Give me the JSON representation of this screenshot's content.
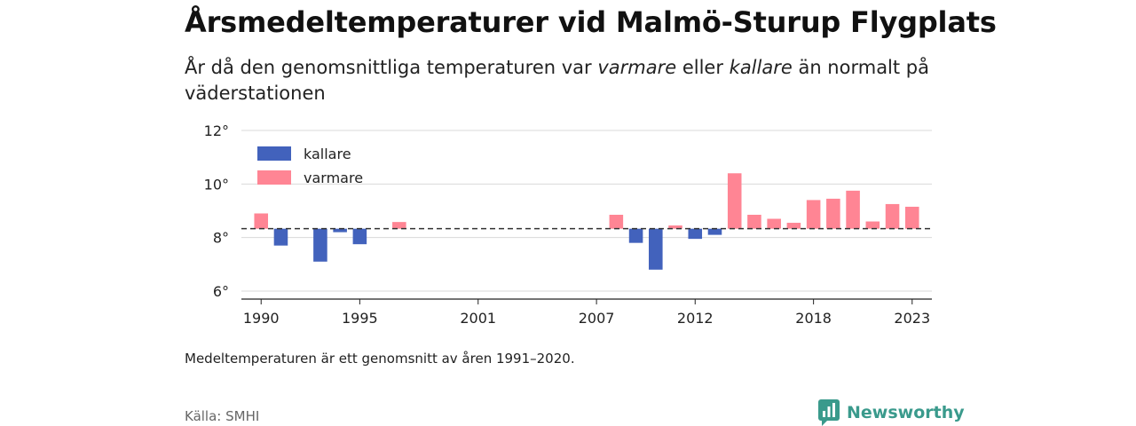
{
  "title": "Årsmedeltemperaturer vid Malmö-Sturup Flygplats",
  "subtitle": {
    "part1": "År då den genomsnittliga temperaturen var ",
    "warm_word": "varmare",
    "part2": " eller ",
    "cold_word": "kallare",
    "part3": " än normalt på väderstationen"
  },
  "note": "Medeltemperaturen är ett genomsnitt av åren 1991–2020.",
  "source": "Källa: SMHI",
  "brand": "Newsworthy",
  "colors": {
    "cold": "#4262bc",
    "warm": "#ff8594",
    "brand": "#3a9a8c"
  },
  "chart_data": {
    "type": "bar",
    "baseline": 8.33,
    "ylim": [
      5.7,
      12
    ],
    "yticks": [
      6,
      8,
      10,
      12
    ],
    "ytick_labels": [
      "6°",
      "8°",
      "10°",
      "12°"
    ],
    "xlim": [
      1989,
      2024
    ],
    "xticks": [
      1990,
      1995,
      2001,
      2007,
      2012,
      2018,
      2023
    ],
    "legend": [
      {
        "key": "cold",
        "label": "kallare"
      },
      {
        "key": "warm",
        "label": "varmare"
      }
    ],
    "legend_position": "top-left",
    "grid": true,
    "data": [
      {
        "year": 1990,
        "value": 8.9
      },
      {
        "year": 1991,
        "value": 7.7
      },
      {
        "year": 1993,
        "value": 7.1
      },
      {
        "year": 1994,
        "value": 8.2
      },
      {
        "year": 1995,
        "value": 7.75
      },
      {
        "year": 1997,
        "value": 8.58
      },
      {
        "year": 2008,
        "value": 8.85
      },
      {
        "year": 2009,
        "value": 7.8
      },
      {
        "year": 2010,
        "value": 6.8
      },
      {
        "year": 2011,
        "value": 8.45
      },
      {
        "year": 2012,
        "value": 7.95
      },
      {
        "year": 2013,
        "value": 8.1
      },
      {
        "year": 2014,
        "value": 10.4
      },
      {
        "year": 2015,
        "value": 8.85
      },
      {
        "year": 2016,
        "value": 8.7
      },
      {
        "year": 2017,
        "value": 8.55
      },
      {
        "year": 2018,
        "value": 9.4
      },
      {
        "year": 2019,
        "value": 9.45
      },
      {
        "year": 2020,
        "value": 9.75
      },
      {
        "year": 2021,
        "value": 8.6
      },
      {
        "year": 2022,
        "value": 9.25
      },
      {
        "year": 2023,
        "value": 9.15
      }
    ]
  }
}
